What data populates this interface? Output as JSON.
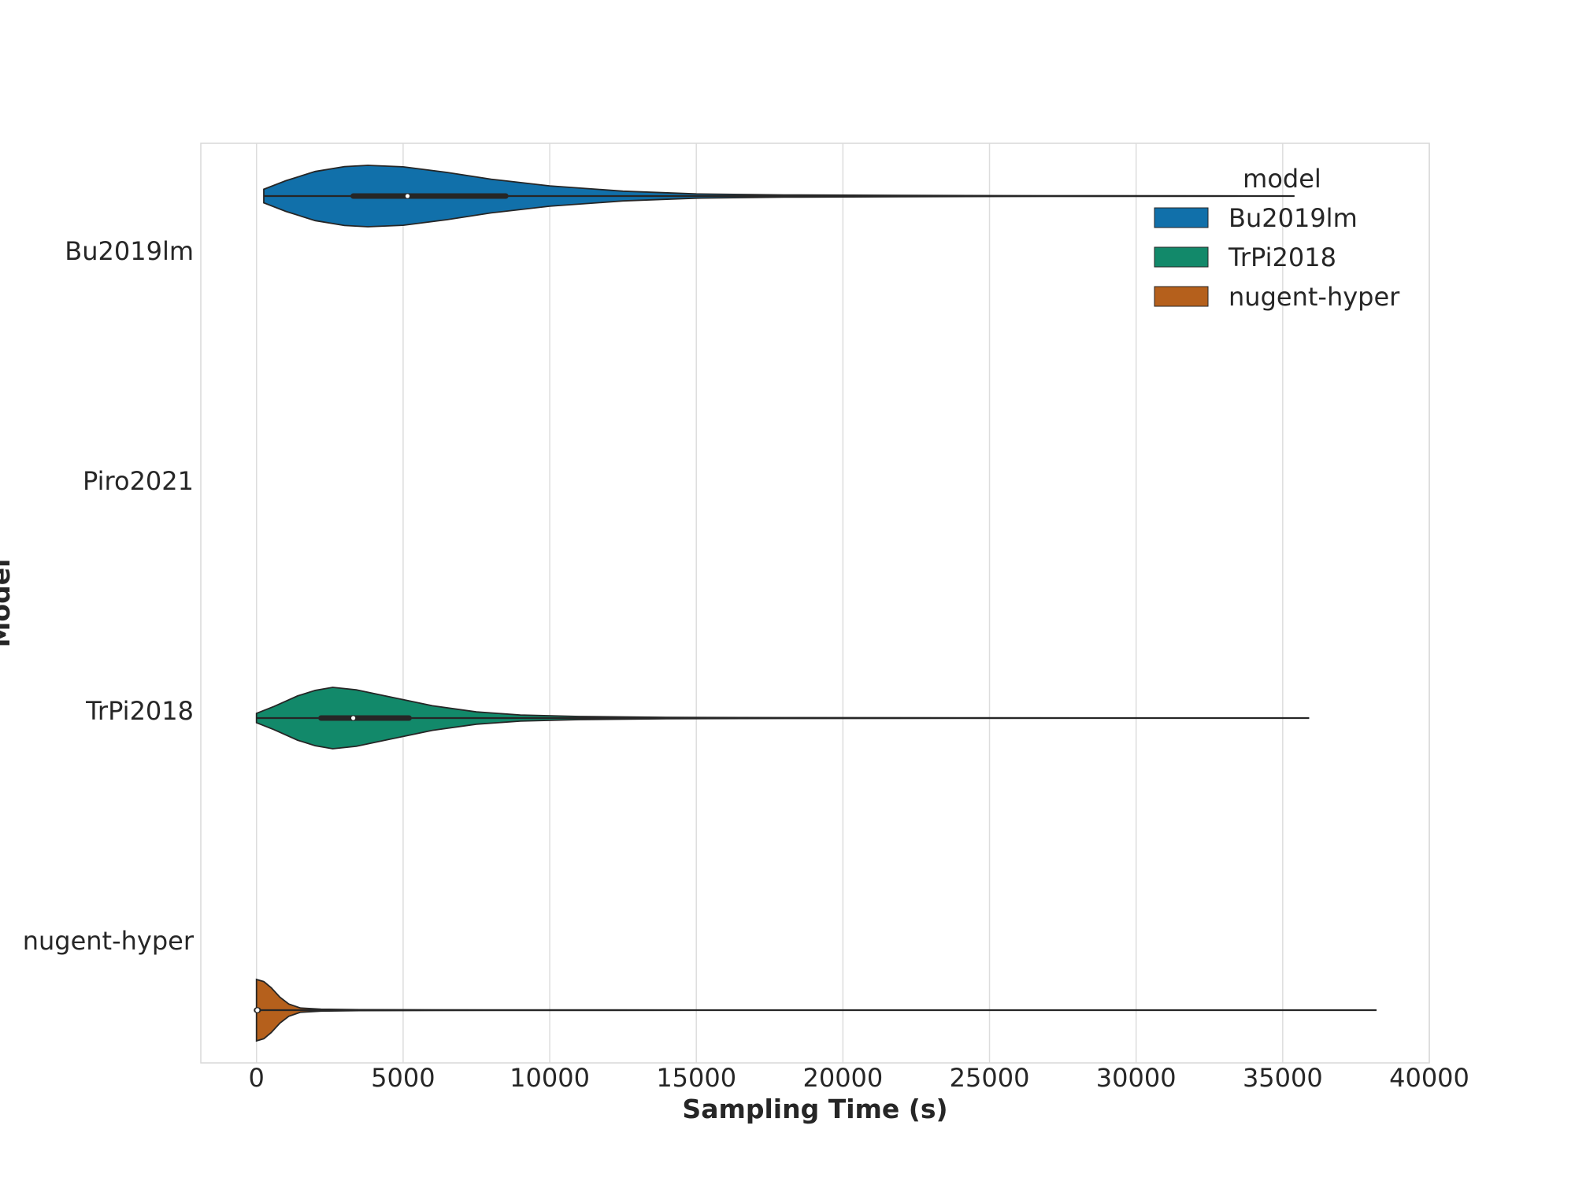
{
  "chart_data": {
    "type": "violin",
    "title": "",
    "xlabel": "Sampling Time (s)",
    "ylabel": "Model",
    "xlim": [
      -1900,
      40000
    ],
    "xticks": [
      0,
      5000,
      10000,
      15000,
      20000,
      25000,
      30000,
      35000,
      40000
    ],
    "xtick_labels": [
      "0",
      "5000",
      "10000",
      "15000",
      "20000",
      "25000",
      "30000",
      "35000",
      "40000"
    ],
    "categories": [
      "Bu2019lm",
      "Piro2021",
      "TrPi2018",
      "nugent-hyper"
    ],
    "grid": true,
    "hue": "model",
    "legend": {
      "title": "model",
      "position": "top-right",
      "entries": [
        "Bu2019lm",
        "TrPi2018",
        "nugent-hyper"
      ]
    },
    "series": [
      {
        "name": "Bu2019lm",
        "category_index": 0,
        "color": "#1170aa",
        "min": 250,
        "max": 35400,
        "q1": 3300,
        "median": 5150,
        "q3": 8500,
        "density": [
          [
            250,
            0.22
          ],
          [
            1000,
            0.5
          ],
          [
            2000,
            0.8
          ],
          [
            3000,
            0.96
          ],
          [
            3800,
            1.0
          ],
          [
            5000,
            0.95
          ],
          [
            6500,
            0.77
          ],
          [
            8000,
            0.55
          ],
          [
            10000,
            0.33
          ],
          [
            12500,
            0.16
          ],
          [
            15000,
            0.07
          ],
          [
            18000,
            0.035
          ],
          [
            22000,
            0.02
          ],
          [
            27000,
            0.01
          ],
          [
            32000,
            0.005
          ],
          [
            35400,
            0.0
          ]
        ]
      },
      {
        "name": "Piro2021",
        "category_index": 1,
        "color": "#888888",
        "min": null,
        "max": null,
        "q1": null,
        "median": null,
        "q3": null,
        "density": []
      },
      {
        "name": "TrPi2018",
        "category_index": 2,
        "color": "#12896a",
        "min": 0,
        "max": 35900,
        "q1": 2200,
        "median": 3300,
        "q3": 5200,
        "density": [
          [
            0,
            0.15
          ],
          [
            600,
            0.38
          ],
          [
            1400,
            0.72
          ],
          [
            2000,
            0.9
          ],
          [
            2600,
            1.0
          ],
          [
            3400,
            0.92
          ],
          [
            4500,
            0.7
          ],
          [
            6000,
            0.4
          ],
          [
            7500,
            0.2
          ],
          [
            9000,
            0.1
          ],
          [
            11000,
            0.05
          ],
          [
            14000,
            0.02
          ],
          [
            18000,
            0.012
          ],
          [
            24000,
            0.006
          ],
          [
            30000,
            0.003
          ],
          [
            35900,
            0.0
          ]
        ]
      },
      {
        "name": "nugent-hyper",
        "category_index": 3,
        "color": "#b5601c",
        "min": 0,
        "max": 38200,
        "q1": 0,
        "median": 30,
        "q3": 60,
        "density": [
          [
            0,
            1.0
          ],
          [
            250,
            0.93
          ],
          [
            500,
            0.73
          ],
          [
            800,
            0.42
          ],
          [
            1100,
            0.2
          ],
          [
            1500,
            0.07
          ],
          [
            2200,
            0.03
          ],
          [
            3500,
            0.015
          ],
          [
            6000,
            0.008
          ],
          [
            12000,
            0.004
          ],
          [
            20000,
            0.002
          ],
          [
            30000,
            0.001
          ],
          [
            38200,
            0.0
          ]
        ]
      }
    ]
  }
}
